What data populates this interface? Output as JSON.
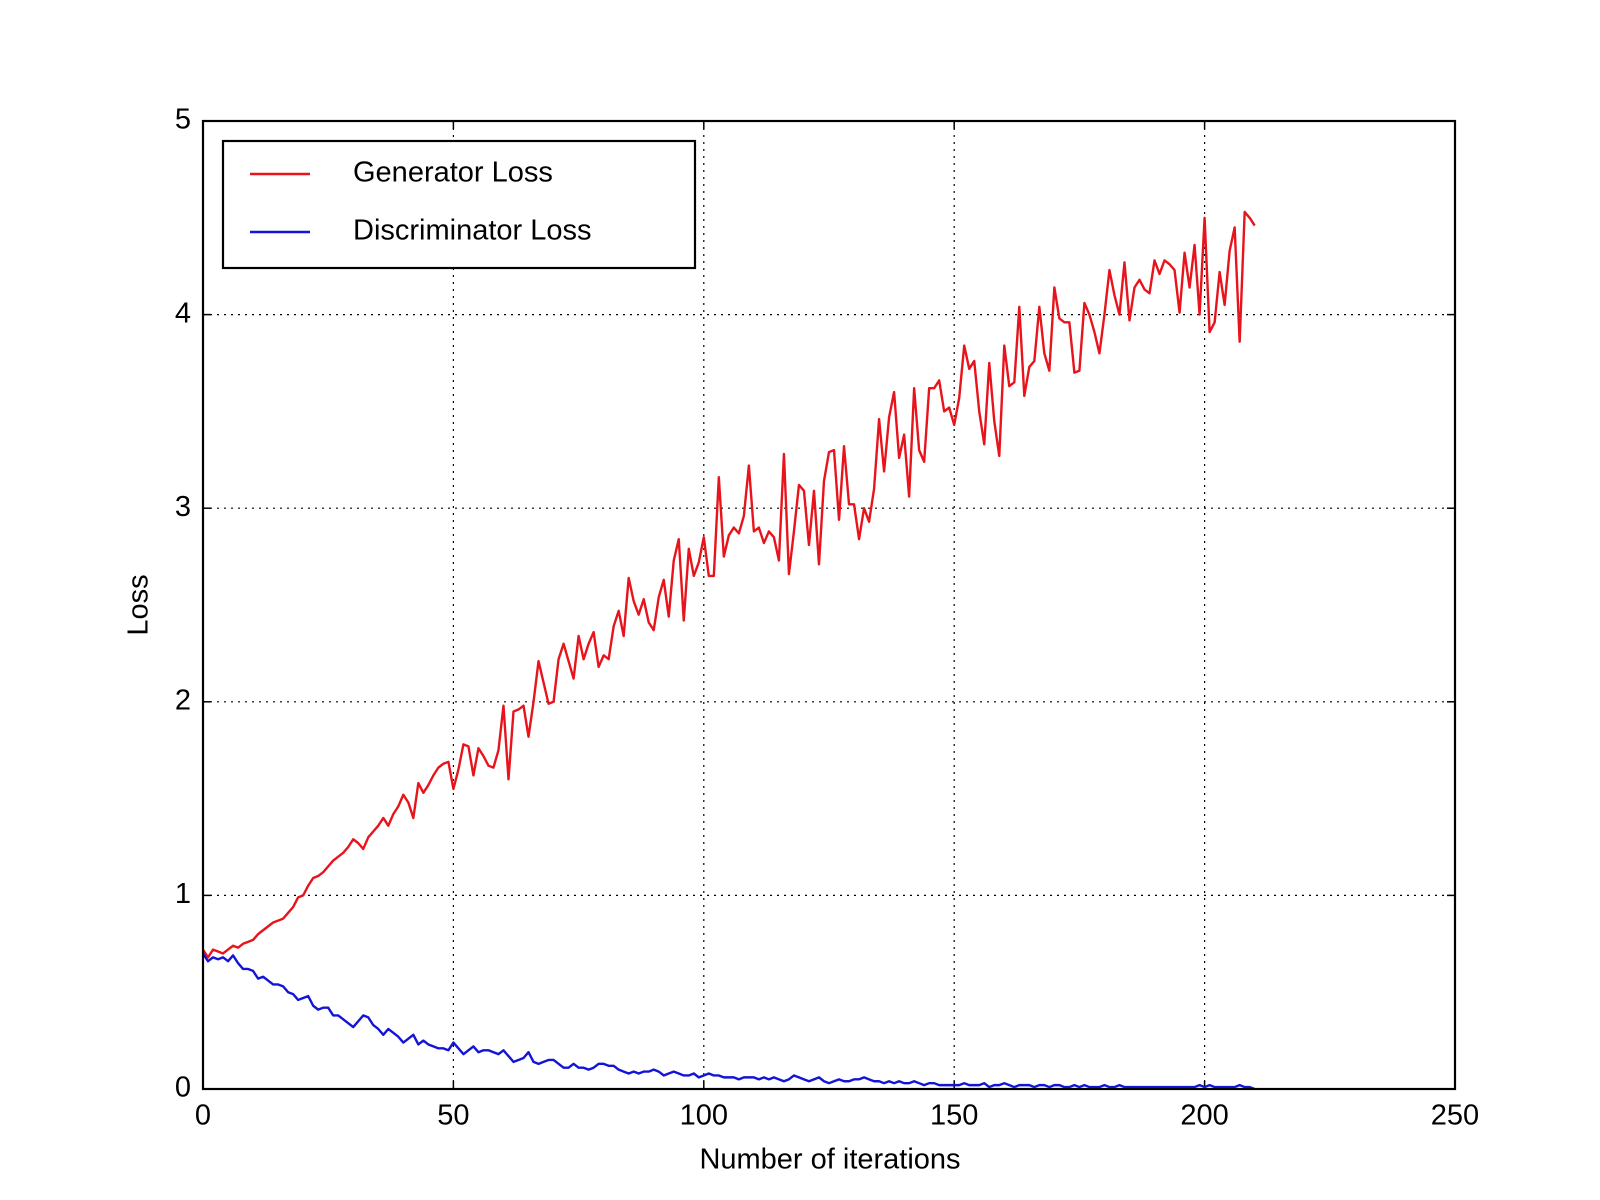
{
  "chart_data": {
    "type": "line",
    "x_label": "Number of iterations",
    "y_label": "Loss",
    "x": [
      0,
      1,
      2,
      3,
      4,
      5,
      6,
      7,
      8,
      9,
      10,
      11,
      12,
      13,
      14,
      15,
      16,
      17,
      18,
      19,
      20,
      21,
      22,
      23,
      24,
      25,
      26,
      27,
      28,
      29,
      30,
      31,
      32,
      33,
      34,
      35,
      36,
      37,
      38,
      39,
      40,
      41,
      42,
      43,
      44,
      45,
      46,
      47,
      48,
      49,
      50,
      51,
      52,
      53,
      54,
      55,
      56,
      57,
      58,
      59,
      60,
      61,
      62,
      63,
      64,
      65,
      66,
      67,
      68,
      69,
      70,
      71,
      72,
      73,
      74,
      75,
      76,
      77,
      78,
      79,
      80,
      81,
      82,
      83,
      84,
      85,
      86,
      87,
      88,
      89,
      90,
      91,
      92,
      93,
      94,
      95,
      96,
      97,
      98,
      99,
      100,
      101,
      102,
      103,
      104,
      105,
      106,
      107,
      108,
      109,
      110,
      111,
      112,
      113,
      114,
      115,
      116,
      117,
      118,
      119,
      120,
      121,
      122,
      123,
      124,
      125,
      126,
      127,
      128,
      129,
      130,
      131,
      132,
      133,
      134,
      135,
      136,
      137,
      138,
      139,
      140,
      141,
      142,
      143,
      144,
      145,
      146,
      147,
      148,
      149,
      150,
      151,
      152,
      153,
      154,
      155,
      156,
      157,
      158,
      159,
      160,
      161,
      162,
      163,
      164,
      165,
      166,
      167,
      168,
      169,
      170,
      171,
      172,
      173,
      174,
      175,
      176,
      177,
      178,
      179,
      180,
      181,
      182,
      183,
      184,
      185,
      186,
      187,
      188,
      189,
      190,
      191,
      192,
      193,
      194,
      195,
      196,
      197,
      198,
      199,
      200,
      201,
      202,
      203,
      204,
      205,
      206,
      207,
      208,
      209,
      210
    ],
    "series": [
      {
        "name": "Generator Loss",
        "color": "#e8141c",
        "values": [
          0.72,
          0.68,
          0.72,
          0.71,
          0.7,
          0.72,
          0.74,
          0.73,
          0.75,
          0.76,
          0.77,
          0.8,
          0.82,
          0.84,
          0.86,
          0.87,
          0.88,
          0.91,
          0.94,
          0.99,
          1.0,
          1.05,
          1.09,
          1.1,
          1.12,
          1.15,
          1.18,
          1.2,
          1.22,
          1.25,
          1.29,
          1.27,
          1.24,
          1.3,
          1.33,
          1.36,
          1.4,
          1.36,
          1.42,
          1.46,
          1.52,
          1.48,
          1.4,
          1.58,
          1.53,
          1.57,
          1.62,
          1.66,
          1.68,
          1.69,
          1.55,
          1.65,
          1.78,
          1.77,
          1.62,
          1.76,
          1.72,
          1.67,
          1.66,
          1.75,
          1.98,
          1.6,
          1.95,
          1.96,
          1.98,
          1.82,
          2.0,
          2.21,
          2.1,
          1.99,
          2.0,
          2.22,
          2.3,
          2.21,
          2.12,
          2.34,
          2.22,
          2.3,
          2.36,
          2.18,
          2.24,
          2.22,
          2.39,
          2.47,
          2.34,
          2.64,
          2.52,
          2.45,
          2.53,
          2.41,
          2.37,
          2.54,
          2.63,
          2.44,
          2.73,
          2.84,
          2.42,
          2.79,
          2.65,
          2.72,
          2.85,
          2.65,
          2.65,
          3.16,
          2.75,
          2.86,
          2.9,
          2.87,
          2.96,
          3.22,
          2.88,
          2.9,
          2.82,
          2.88,
          2.85,
          2.73,
          3.28,
          2.66,
          2.88,
          3.12,
          3.09,
          2.81,
          3.09,
          2.71,
          3.14,
          3.29,
          3.3,
          2.94,
          3.32,
          3.02,
          3.02,
          2.84,
          3.0,
          2.93,
          3.1,
          3.46,
          3.19,
          3.47,
          3.6,
          3.26,
          3.38,
          3.06,
          3.62,
          3.3,
          3.24,
          3.62,
          3.62,
          3.66,
          3.5,
          3.52,
          3.43,
          3.57,
          3.84,
          3.72,
          3.76,
          3.5,
          3.33,
          3.75,
          3.45,
          3.27,
          3.84,
          3.63,
          3.65,
          4.04,
          3.58,
          3.73,
          3.76,
          4.04,
          3.8,
          3.71,
          4.14,
          3.98,
          3.96,
          3.96,
          3.7,
          3.71,
          4.06,
          4.0,
          3.91,
          3.8,
          4.0,
          4.23,
          4.1,
          4.0,
          4.27,
          3.97,
          4.14,
          4.18,
          4.13,
          4.11,
          4.28,
          4.21,
          4.28,
          4.26,
          4.23,
          4.01,
          4.32,
          4.14,
          4.36,
          4.0,
          4.5,
          3.91,
          3.96,
          4.22,
          4.05,
          4.33,
          4.45,
          3.86,
          4.53,
          4.5,
          4.46
        ]
      },
      {
        "name": "Discriminator Loss",
        "color": "#1414d8",
        "values": [
          0.7,
          0.66,
          0.68,
          0.67,
          0.68,
          0.66,
          0.69,
          0.65,
          0.62,
          0.62,
          0.61,
          0.57,
          0.58,
          0.56,
          0.54,
          0.54,
          0.53,
          0.5,
          0.49,
          0.46,
          0.47,
          0.48,
          0.43,
          0.41,
          0.42,
          0.42,
          0.38,
          0.38,
          0.36,
          0.34,
          0.32,
          0.35,
          0.38,
          0.37,
          0.33,
          0.31,
          0.28,
          0.31,
          0.29,
          0.27,
          0.24,
          0.26,
          0.28,
          0.23,
          0.25,
          0.23,
          0.22,
          0.21,
          0.21,
          0.2,
          0.24,
          0.21,
          0.18,
          0.2,
          0.22,
          0.19,
          0.2,
          0.2,
          0.19,
          0.18,
          0.2,
          0.17,
          0.14,
          0.15,
          0.16,
          0.19,
          0.14,
          0.13,
          0.14,
          0.15,
          0.15,
          0.13,
          0.11,
          0.11,
          0.13,
          0.11,
          0.11,
          0.1,
          0.11,
          0.13,
          0.13,
          0.12,
          0.12,
          0.1,
          0.09,
          0.08,
          0.09,
          0.08,
          0.09,
          0.09,
          0.1,
          0.09,
          0.07,
          0.08,
          0.09,
          0.08,
          0.07,
          0.07,
          0.08,
          0.06,
          0.07,
          0.08,
          0.07,
          0.07,
          0.06,
          0.06,
          0.06,
          0.05,
          0.06,
          0.06,
          0.06,
          0.05,
          0.06,
          0.05,
          0.06,
          0.05,
          0.04,
          0.05,
          0.07,
          0.06,
          0.05,
          0.04,
          0.05,
          0.06,
          0.04,
          0.03,
          0.04,
          0.05,
          0.04,
          0.04,
          0.05,
          0.05,
          0.06,
          0.05,
          0.04,
          0.04,
          0.03,
          0.04,
          0.03,
          0.04,
          0.03,
          0.03,
          0.04,
          0.03,
          0.02,
          0.03,
          0.03,
          0.02,
          0.02,
          0.02,
          0.02,
          0.02,
          0.03,
          0.02,
          0.02,
          0.02,
          0.03,
          0.01,
          0.02,
          0.02,
          0.03,
          0.02,
          0.01,
          0.02,
          0.02,
          0.02,
          0.01,
          0.02,
          0.02,
          0.01,
          0.02,
          0.02,
          0.01,
          0.01,
          0.02,
          0.01,
          0.02,
          0.01,
          0.01,
          0.01,
          0.02,
          0.01,
          0.01,
          0.02,
          0.01,
          0.01,
          0.01,
          0.01,
          0.01,
          0.01,
          0.01,
          0.01,
          0.01,
          0.01,
          0.01,
          0.01,
          0.01,
          0.01,
          0.01,
          0.02,
          0.01,
          0.02,
          0.01,
          0.01,
          0.01,
          0.01,
          0.01,
          0.02,
          0.01,
          0.01,
          0.0
        ]
      }
    ],
    "xlim": [
      0,
      250
    ],
    "xticks": [
      0,
      50,
      100,
      150,
      200,
      250
    ],
    "ylim": [
      0,
      5
    ],
    "yticks": [
      0,
      1,
      2,
      3,
      4,
      5
    ],
    "grid": true,
    "legend": "upper left"
  }
}
